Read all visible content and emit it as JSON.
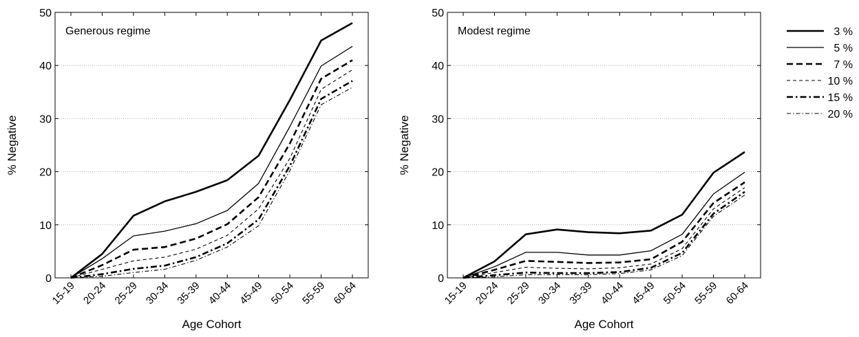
{
  "legend": {
    "placement": "right"
  },
  "chart_data": [
    {
      "type": "line",
      "title": "Generous regime",
      "xlabel": "Age Cohort",
      "ylabel": "% Negative",
      "ylim": [
        0,
        50
      ],
      "yticks": [
        "0",
        "10",
        "20",
        "30",
        "40",
        "50"
      ],
      "grid": "horizontal dotted",
      "categories": [
        "15-19",
        "20-24",
        "25-29",
        "30-34",
        "35-39",
        "40-44",
        "45-49",
        "50-54",
        "55-59",
        "60-64"
      ],
      "series": [
        {
          "name": "3 %",
          "style": "thick-solid",
          "values": [
            0,
            4.5,
            11.7,
            14.4,
            16.2,
            18.4,
            23.0,
            33.5,
            44.7,
            48.0
          ]
        },
        {
          "name": "5 %",
          "style": "thin-solid",
          "values": [
            0,
            3.6,
            7.9,
            8.8,
            10.2,
            12.7,
            17.8,
            28.5,
            39.9,
            43.6
          ]
        },
        {
          "name": "7 %",
          "style": "thick-dashed",
          "values": [
            0,
            2.4,
            5.3,
            5.8,
            7.4,
            10.1,
            15.2,
            25.3,
            37.5,
            41.0
          ]
        },
        {
          "name": "10 %",
          "style": "thin-dashed",
          "values": [
            0,
            1.6,
            3.2,
            3.9,
            5.4,
            8.0,
            13.0,
            22.5,
            35.5,
            39.2
          ]
        },
        {
          "name": "15 %",
          "style": "thick-dashdot",
          "values": [
            0,
            0.7,
            1.7,
            2.3,
            3.9,
            6.5,
            11.0,
            21.1,
            33.7,
            37.1
          ]
        },
        {
          "name": "20 %",
          "style": "thin-dashdot",
          "values": [
            0,
            0.3,
            1.0,
            1.6,
            3.3,
            5.8,
            9.8,
            20.2,
            32.6,
            35.9
          ]
        }
      ]
    },
    {
      "type": "line",
      "title": "Modest regime",
      "xlabel": "Age Cohort",
      "ylabel": "% Negative",
      "ylim": [
        0,
        50
      ],
      "yticks": [
        "0",
        "10",
        "20",
        "30",
        "40",
        "50"
      ],
      "grid": "horizontal dotted",
      "categories": [
        "15-19",
        "20-24",
        "25-29",
        "30-34",
        "35-39",
        "40-44",
        "45-49",
        "50-54",
        "55-59",
        "60-64"
      ],
      "series": [
        {
          "name": "3 %",
          "style": "thick-solid",
          "values": [
            0,
            3.1,
            8.2,
            9.1,
            8.6,
            8.4,
            8.9,
            11.9,
            19.8,
            23.7
          ]
        },
        {
          "name": "5 %",
          "style": "thin-solid",
          "values": [
            0,
            2.1,
            4.8,
            4.8,
            4.3,
            4.3,
            5.1,
            8.2,
            15.8,
            19.9
          ]
        },
        {
          "name": "7 %",
          "style": "thick-dashed",
          "values": [
            0,
            1.5,
            3.2,
            3.0,
            2.8,
            2.9,
            3.5,
            6.8,
            14.1,
            18.0
          ]
        },
        {
          "name": "10 %",
          "style": "thin-dashed",
          "values": [
            0,
            1.0,
            2.0,
            1.8,
            1.7,
            1.9,
            2.6,
            5.5,
            13.0,
            17.0
          ]
        },
        {
          "name": "15 %",
          "style": "thick-dashdot",
          "values": [
            0,
            0.5,
            1.0,
            0.9,
            0.9,
            1.1,
            1.9,
            4.7,
            12.1,
            16.2
          ]
        },
        {
          "name": "20 %",
          "style": "thin-dashdot",
          "values": [
            0,
            0.2,
            0.6,
            0.6,
            0.6,
            0.8,
            1.5,
            4.2,
            11.6,
            15.6
          ]
        }
      ]
    }
  ]
}
